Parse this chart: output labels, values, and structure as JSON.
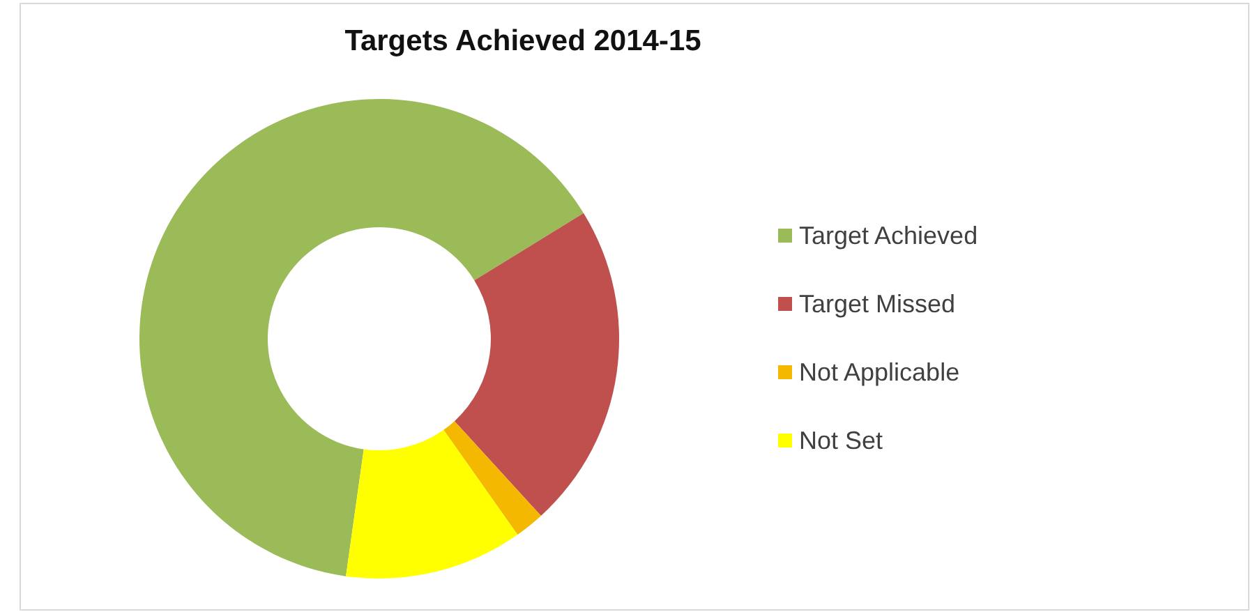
{
  "chart_data": {
    "type": "donut",
    "title": "Targets Achieved 2014-15",
    "categories": [
      "Target Achieved",
      "Target Missed",
      "Not Applicable",
      "Not Set"
    ],
    "values": [
      64,
      22,
      2,
      12
    ],
    "colors": [
      "#9bbb59",
      "#c0504d",
      "#f5b800",
      "#ffff00"
    ],
    "legend": "right"
  }
}
